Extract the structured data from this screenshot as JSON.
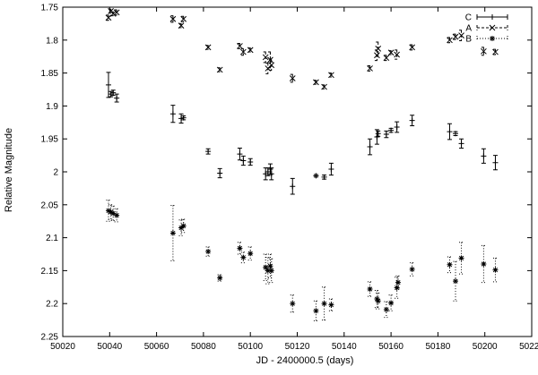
{
  "chart_data": {
    "type": "scatter",
    "title": "",
    "xlabel": "JD - 2400000.5 (days)",
    "ylabel": "Relative Magnitude",
    "xlim": [
      50020,
      50220
    ],
    "ylim": [
      1.75,
      2.25
    ],
    "y_inverted": true,
    "x_ticks": [
      50020,
      50040,
      50060,
      50080,
      50100,
      50120,
      50140,
      50160,
      50180,
      50200,
      50220
    ],
    "y_ticks": [
      1.75,
      1.8,
      1.85,
      1.9,
      1.95,
      2.0,
      2.05,
      2.1,
      2.15,
      2.2,
      2.25
    ],
    "x_tick_labels": [
      "50020",
      "50040",
      "50060",
      "50080",
      "50100",
      "50120",
      "50140",
      "50160",
      "50180",
      "50200",
      "50220"
    ],
    "y_tick_labels": [
      "1.75",
      "1.8",
      "1.85",
      "1.9",
      "1.95",
      "2",
      "2.05",
      "2.1",
      "2.15",
      "2.2",
      "2.25"
    ],
    "grid": false,
    "legend_position": "top-right",
    "series": [
      {
        "name": "C",
        "marker": "plus",
        "line_style": "solid",
        "points": [
          {
            "x": 50039.5,
            "y": 1.868,
            "err": 0.019
          },
          {
            "x": 50040.5,
            "y": 1.882,
            "err": 0.004
          },
          {
            "x": 50041.5,
            "y": 1.88,
            "err": 0.004
          },
          {
            "x": 50043.0,
            "y": 1.888,
            "err": 0.006
          },
          {
            "x": 50067.0,
            "y": 1.912,
            "err": 0.013
          },
          {
            "x": 50070.5,
            "y": 1.919,
            "err": 0.007
          },
          {
            "x": 50071.5,
            "y": 1.918,
            "err": 0.003
          },
          {
            "x": 50082.0,
            "y": 1.969,
            "err": 0.004
          },
          {
            "x": 50087.0,
            "y": 2.002,
            "err": 0.007
          },
          {
            "x": 50095.5,
            "y": 1.973,
            "err": 0.009
          },
          {
            "x": 50097.0,
            "y": 1.983,
            "err": 0.007
          },
          {
            "x": 50100.0,
            "y": 1.985,
            "err": 0.005
          },
          {
            "x": 50106.5,
            "y": 2.003,
            "err": 0.009
          },
          {
            "x": 50107.5,
            "y": 2.0,
            "err": 0.006
          },
          {
            "x": 50108.5,
            "y": 1.996,
            "err": 0.008
          },
          {
            "x": 50109.0,
            "y": 2.003,
            "err": 0.009
          },
          {
            "x": 50118.0,
            "y": 2.022,
            "err": 0.012
          },
          {
            "x": 50128.0,
            "y": 2.006,
            "err": 0.002
          },
          {
            "x": 50131.5,
            "y": 2.008,
            "err": 0.003
          },
          {
            "x": 50134.5,
            "y": 1.996,
            "err": 0.009
          },
          {
            "x": 50151.0,
            "y": 1.962,
            "err": 0.012
          },
          {
            "x": 50154.0,
            "y": 1.947,
            "err": 0.011
          },
          {
            "x": 50154.5,
            "y": 1.942,
            "err": 0.004
          },
          {
            "x": 50158.0,
            "y": 1.943,
            "err": 0.005
          },
          {
            "x": 50160.0,
            "y": 1.937,
            "err": 0.003
          },
          {
            "x": 50162.5,
            "y": 1.932,
            "err": 0.008
          },
          {
            "x": 50169.0,
            "y": 1.922,
            "err": 0.008
          },
          {
            "x": 50185.0,
            "y": 1.939,
            "err": 0.012
          },
          {
            "x": 50187.5,
            "y": 1.942,
            "err": 0.003
          },
          {
            "x": 50190.0,
            "y": 1.957,
            "err": 0.007
          },
          {
            "x": 50199.5,
            "y": 1.976,
            "err": 0.011
          },
          {
            "x": 50204.5,
            "y": 1.986,
            "err": 0.011
          }
        ]
      },
      {
        "name": "A",
        "marker": "cross",
        "line_style": "dashed",
        "points": [
          {
            "x": 50039.5,
            "y": 1.766,
            "err": 0.004
          },
          {
            "x": 50040.5,
            "y": 1.756,
            "err": 0.003
          },
          {
            "x": 50041.5,
            "y": 1.76,
            "err": 0.003
          },
          {
            "x": 50043.0,
            "y": 1.758,
            "err": 0.004
          },
          {
            "x": 50067.0,
            "y": 1.768,
            "err": 0.005
          },
          {
            "x": 50070.5,
            "y": 1.778,
            "err": 0.003
          },
          {
            "x": 50071.5,
            "y": 1.768,
            "err": 0.004
          },
          {
            "x": 50082.0,
            "y": 1.811,
            "err": 0.003
          },
          {
            "x": 50087.0,
            "y": 1.845,
            "err": 0.003
          },
          {
            "x": 50095.5,
            "y": 1.809,
            "err": 0.004
          },
          {
            "x": 50097.0,
            "y": 1.818,
            "err": 0.005
          },
          {
            "x": 50100.0,
            "y": 1.815,
            "err": 0.003
          },
          {
            "x": 50106.5,
            "y": 1.826,
            "err": 0.008
          },
          {
            "x": 50107.5,
            "y": 1.843,
            "err": 0.008
          },
          {
            "x": 50108.5,
            "y": 1.83,
            "err": 0.012
          },
          {
            "x": 50109.0,
            "y": 1.838,
            "err": 0.008
          },
          {
            "x": 50118.0,
            "y": 1.858,
            "err": 0.006
          },
          {
            "x": 50128.0,
            "y": 1.864,
            "err": 0.003
          },
          {
            "x": 50131.5,
            "y": 1.871,
            "err": 0.003
          },
          {
            "x": 50134.5,
            "y": 1.853,
            "err": 0.003
          },
          {
            "x": 50151.0,
            "y": 1.843,
            "err": 0.004
          },
          {
            "x": 50154.0,
            "y": 1.823,
            "err": 0.008
          },
          {
            "x": 50154.5,
            "y": 1.813,
            "err": 0.01
          },
          {
            "x": 50158.0,
            "y": 1.827,
            "err": 0.004
          },
          {
            "x": 50160.0,
            "y": 1.819,
            "err": 0.003
          },
          {
            "x": 50162.5,
            "y": 1.822,
            "err": 0.007
          },
          {
            "x": 50169.0,
            "y": 1.811,
            "err": 0.004
          },
          {
            "x": 50185.0,
            "y": 1.8,
            "err": 0.004
          },
          {
            "x": 50187.5,
            "y": 1.795,
            "err": 0.004
          },
          {
            "x": 50190.0,
            "y": 1.793,
            "err": 0.008
          },
          {
            "x": 50199.5,
            "y": 1.817,
            "err": 0.006
          },
          {
            "x": 50204.5,
            "y": 1.818,
            "err": 0.004
          }
        ]
      },
      {
        "name": "B",
        "marker": "star",
        "line_style": "dotted",
        "points": [
          {
            "x": 50039.5,
            "y": 2.059,
            "err": 0.016
          },
          {
            "x": 50040.5,
            "y": 2.061,
            "err": 0.011
          },
          {
            "x": 50041.5,
            "y": 2.063,
            "err": 0.011
          },
          {
            "x": 50043.0,
            "y": 2.066,
            "err": 0.01
          },
          {
            "x": 50067.0,
            "y": 2.093,
            "err": 0.042
          },
          {
            "x": 50070.5,
            "y": 2.085,
            "err": 0.012
          },
          {
            "x": 50071.5,
            "y": 2.082,
            "err": 0.01
          },
          {
            "x": 50082.0,
            "y": 2.121,
            "err": 0.007
          },
          {
            "x": 50087.0,
            "y": 2.161,
            "err": 0.005
          },
          {
            "x": 50095.5,
            "y": 2.116,
            "err": 0.009
          },
          {
            "x": 50097.0,
            "y": 2.13,
            "err": 0.008
          },
          {
            "x": 50100.0,
            "y": 2.124,
            "err": 0.01
          },
          {
            "x": 50106.5,
            "y": 2.145,
            "err": 0.02
          },
          {
            "x": 50107.5,
            "y": 2.15,
            "err": 0.02
          },
          {
            "x": 50108.5,
            "y": 2.143,
            "err": 0.018
          },
          {
            "x": 50109.0,
            "y": 2.15,
            "err": 0.018
          },
          {
            "x": 50118.0,
            "y": 2.2,
            "err": 0.013
          },
          {
            "x": 50128.0,
            "y": 2.211,
            "err": 0.015
          },
          {
            "x": 50131.5,
            "y": 2.2,
            "err": 0.025
          },
          {
            "x": 50134.5,
            "y": 2.202,
            "err": 0.009
          },
          {
            "x": 50151.0,
            "y": 2.178,
            "err": 0.011
          },
          {
            "x": 50154.0,
            "y": 2.193,
            "err": 0.013
          },
          {
            "x": 50154.5,
            "y": 2.196,
            "err": 0.012
          },
          {
            "x": 50158.0,
            "y": 2.209,
            "err": 0.012
          },
          {
            "x": 50160.0,
            "y": 2.199,
            "err": 0.012
          },
          {
            "x": 50162.5,
            "y": 2.176,
            "err": 0.016
          },
          {
            "x": 50163.0,
            "y": 2.168,
            "err": 0.01
          },
          {
            "x": 50169.0,
            "y": 2.148,
            "err": 0.01
          },
          {
            "x": 50185.0,
            "y": 2.141,
            "err": 0.012
          },
          {
            "x": 50187.5,
            "y": 2.166,
            "err": 0.03
          },
          {
            "x": 50190.0,
            "y": 2.131,
            "err": 0.024
          },
          {
            "x": 50199.5,
            "y": 2.14,
            "err": 0.028
          },
          {
            "x": 50204.5,
            "y": 2.149,
            "err": 0.018
          }
        ]
      }
    ]
  }
}
